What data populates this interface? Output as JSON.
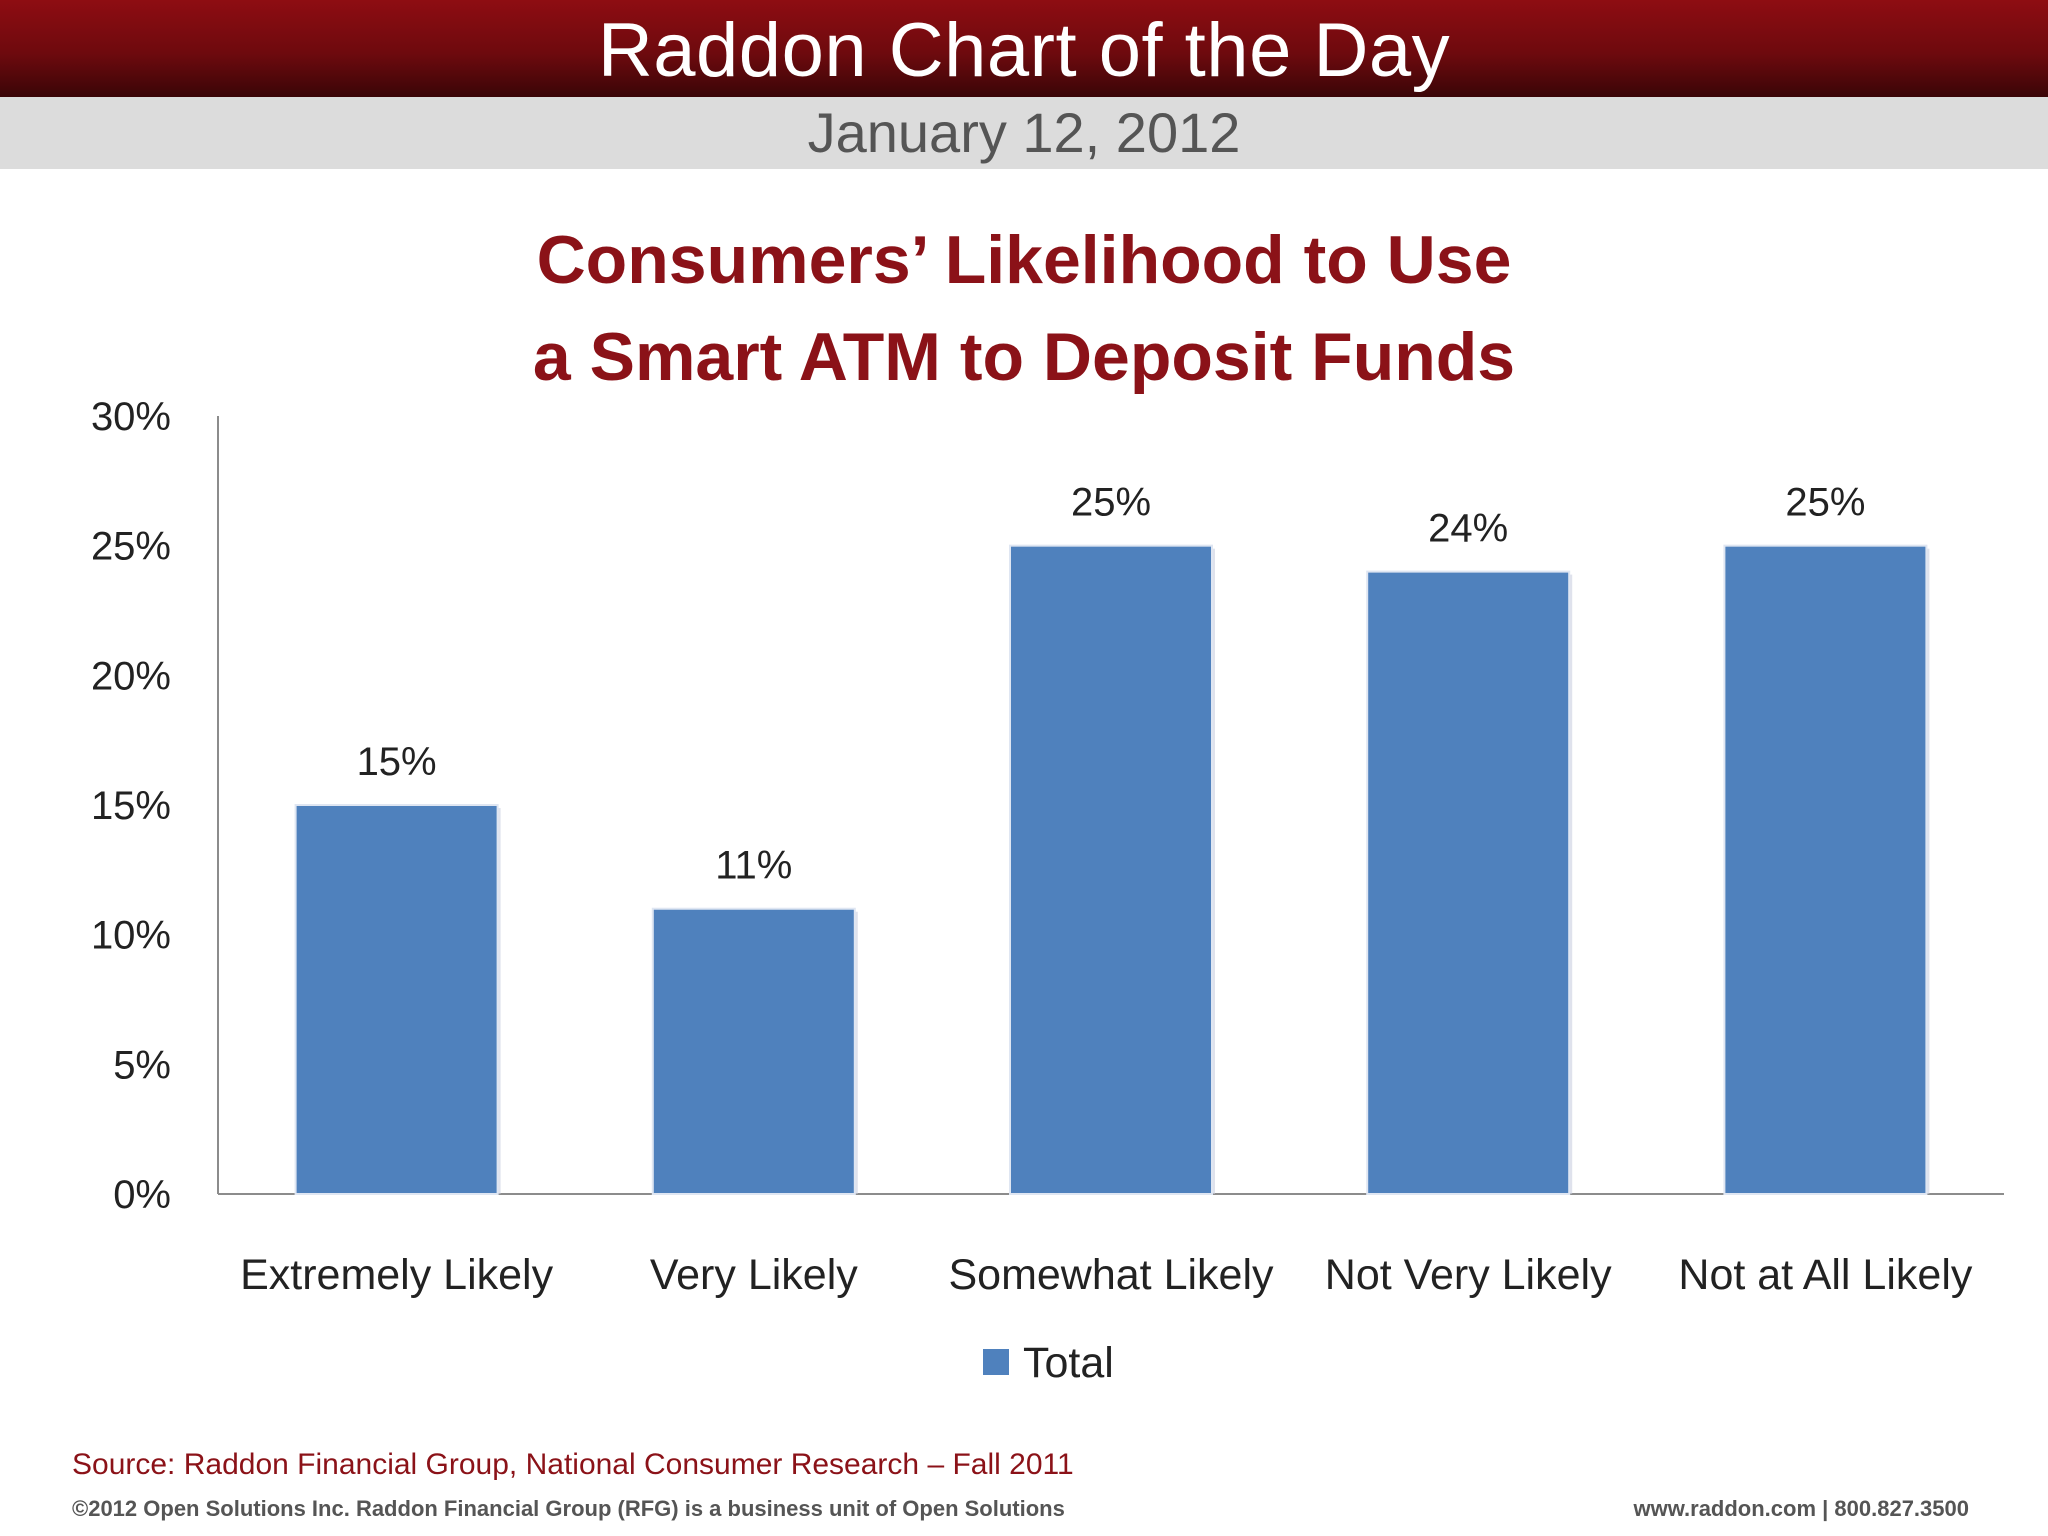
{
  "header": {
    "title": "Raddon Chart of the Day",
    "date": "January 12, 2012"
  },
  "chart_data": {
    "type": "bar",
    "title_lines": [
      "Consumers’ Likelihood to Use",
      "a Smart ATM to Deposit Funds"
    ],
    "categories": [
      "Extremely Likely",
      "Very Likely",
      "Somewhat Likely",
      "Not Very Likely",
      "Not at All Likely"
    ],
    "series": [
      {
        "name": "Total",
        "values": [
          15,
          11,
          25,
          24,
          25
        ],
        "color": "#4f81bd"
      }
    ],
    "data_labels": [
      "15%",
      "11%",
      "25%",
      "24%",
      "25%"
    ],
    "y_ticks": [
      0,
      5,
      10,
      15,
      20,
      25,
      30
    ],
    "y_tick_labels": [
      "0%",
      "5%",
      "10%",
      "15%",
      "20%",
      "25%",
      "30%"
    ],
    "ylim": [
      0,
      30
    ],
    "xlabel": "",
    "ylabel": "",
    "grid": false,
    "legend_position": "bottom"
  },
  "footer": {
    "source": "Source: Raddon Financial Group, National Consumer Research – Fall 2011",
    "copyright": "©2012 Open Solutions Inc.  Raddon Financial Group (RFG) is a business unit of Open Solutions",
    "contact": "www.raddon.com  |  800.827.3500"
  },
  "colors": {
    "banner": "#8e0d12",
    "title_red": "#8b1218",
    "bar": "#4f81bd"
  }
}
